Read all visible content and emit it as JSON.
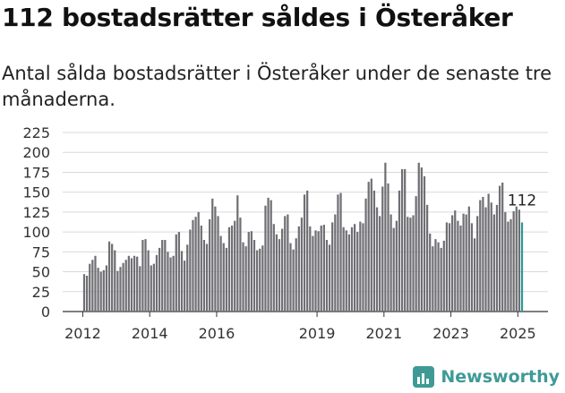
{
  "header": {
    "title": "112 bostadsrätter såldes i Österåker",
    "subtitle": "Antal sålda bostadsrätter i Österåker under de senaste tre månaderna."
  },
  "brand": {
    "name": "Newsworthy",
    "icon": "newsworthy-chart-icon",
    "color": "#3f9a96"
  },
  "chart_data": {
    "type": "bar",
    "title": "",
    "xlabel": "",
    "ylabel": "",
    "ylim": [
      0,
      225
    ],
    "y_ticks": [
      0,
      25,
      50,
      75,
      100,
      125,
      150,
      175,
      200,
      225
    ],
    "x_tick_labels": [
      "2012",
      "2014",
      "2016",
      "2019",
      "2021",
      "2023",
      "2025"
    ],
    "grid": true,
    "bar_color": "#706f74",
    "highlight_color": "#2a9a93",
    "highlight_label": "112",
    "series": [
      {
        "values": [
          47,
          45,
          60,
          65,
          70,
          55,
          50,
          52,
          58,
          88,
          85,
          77,
          51,
          56,
          61,
          65,
          70,
          67,
          70,
          69,
          57,
          90,
          91,
          77,
          58,
          60,
          71,
          80,
          90,
          90,
          75,
          68,
          70,
          97,
          100,
          76,
          64,
          84,
          103,
          115,
          119,
          125,
          108,
          90,
          85,
          116,
          142,
          132,
          120,
          95,
          86,
          80,
          106,
          108,
          114,
          146,
          118,
          87,
          82,
          100,
          101,
          90,
          77,
          79,
          83,
          133,
          143,
          140,
          110,
          97,
          91,
          104,
          120,
          122,
          86,
          78,
          92,
          107,
          118,
          147,
          152,
          107,
          95,
          102,
          101,
          108,
          109,
          90,
          84,
          112,
          122,
          147,
          149,
          106,
          102,
          97,
          106,
          110,
          100,
          113,
          111,
          142,
          163,
          167,
          152,
          131,
          120,
          157,
          187,
          161,
          122,
          105,
          114,
          152,
          179,
          179,
          119,
          118,
          121,
          145,
          187,
          181,
          170,
          134,
          98,
          82,
          91,
          87,
          80,
          89,
          112,
          111,
          121,
          127,
          114,
          108,
          123,
          122,
          132,
          111,
          92,
          120,
          140,
          144,
          131,
          148,
          137,
          122,
          134,
          158,
          162,
          125,
          113,
          116,
          126,
          132,
          128,
          112
        ]
      }
    ],
    "x_start": "2012-01",
    "x_end": "2025-02"
  }
}
